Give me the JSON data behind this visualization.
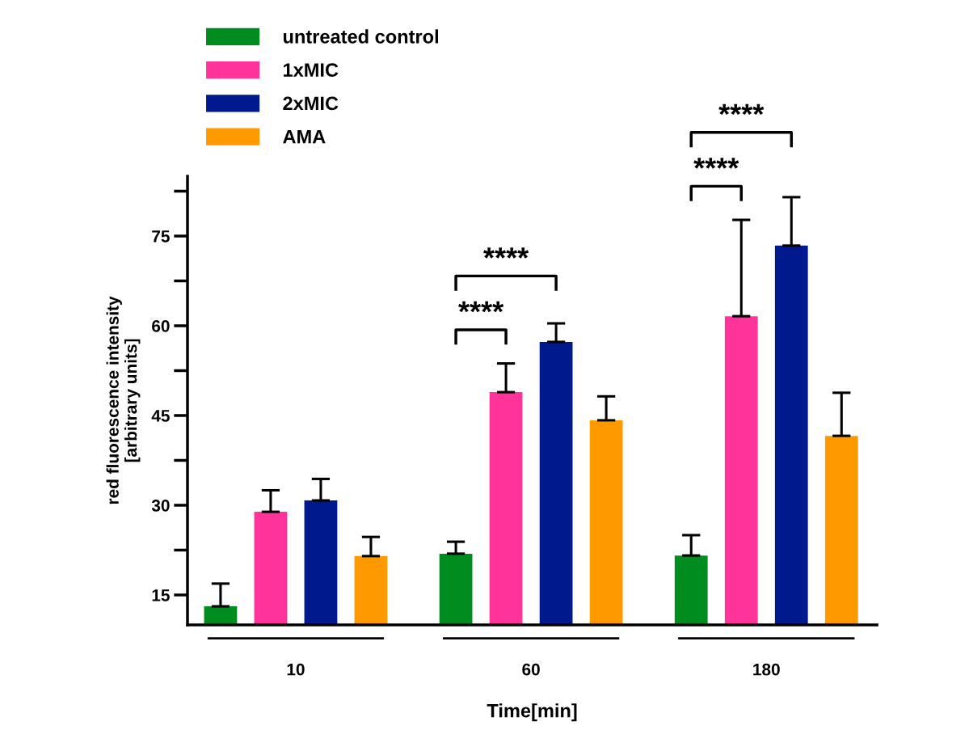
{
  "chart_data": {
    "type": "bar",
    "xlabel": "Time[min]",
    "ylabel": "red fluorescence intensity\n[arbitrary units]",
    "categories": [
      "10",
      "60",
      "180"
    ],
    "series": [
      {
        "name": "untreated control",
        "color": "#008c1e",
        "values": [
          13.1,
          21.9,
          21.6
        ],
        "errors": [
          [
            13.1,
            16.9
          ],
          [
            21.9,
            23.9
          ],
          [
            21.6,
            25.0
          ]
        ]
      },
      {
        "name": "1xMIC",
        "color": "#ff3399",
        "values": [
          28.9,
          48.9,
          61.6
        ],
        "errors": [
          [
            28.9,
            32.5
          ],
          [
            48.9,
            53.7
          ],
          [
            61.6,
            77.7
          ]
        ]
      },
      {
        "name": "2xMIC",
        "color": "#00198c",
        "values": [
          30.8,
          57.3,
          73.4
        ],
        "errors": [
          [
            30.8,
            34.4
          ],
          [
            57.3,
            60.4
          ],
          [
            73.4,
            81.5
          ]
        ]
      },
      {
        "name": "AMA",
        "color": "#ff9900",
        "values": [
          21.5,
          44.2,
          41.6
        ],
        "errors": [
          [
            21.5,
            24.7
          ],
          [
            44.2,
            48.2
          ],
          [
            41.6,
            48.8
          ]
        ]
      }
    ],
    "ylim": [
      10,
      85
    ],
    "yticks": [
      15,
      30,
      45,
      60,
      75
    ],
    "legend": "top left",
    "annotations": [
      "****",
      "****",
      "****",
      "****"
    ]
  }
}
